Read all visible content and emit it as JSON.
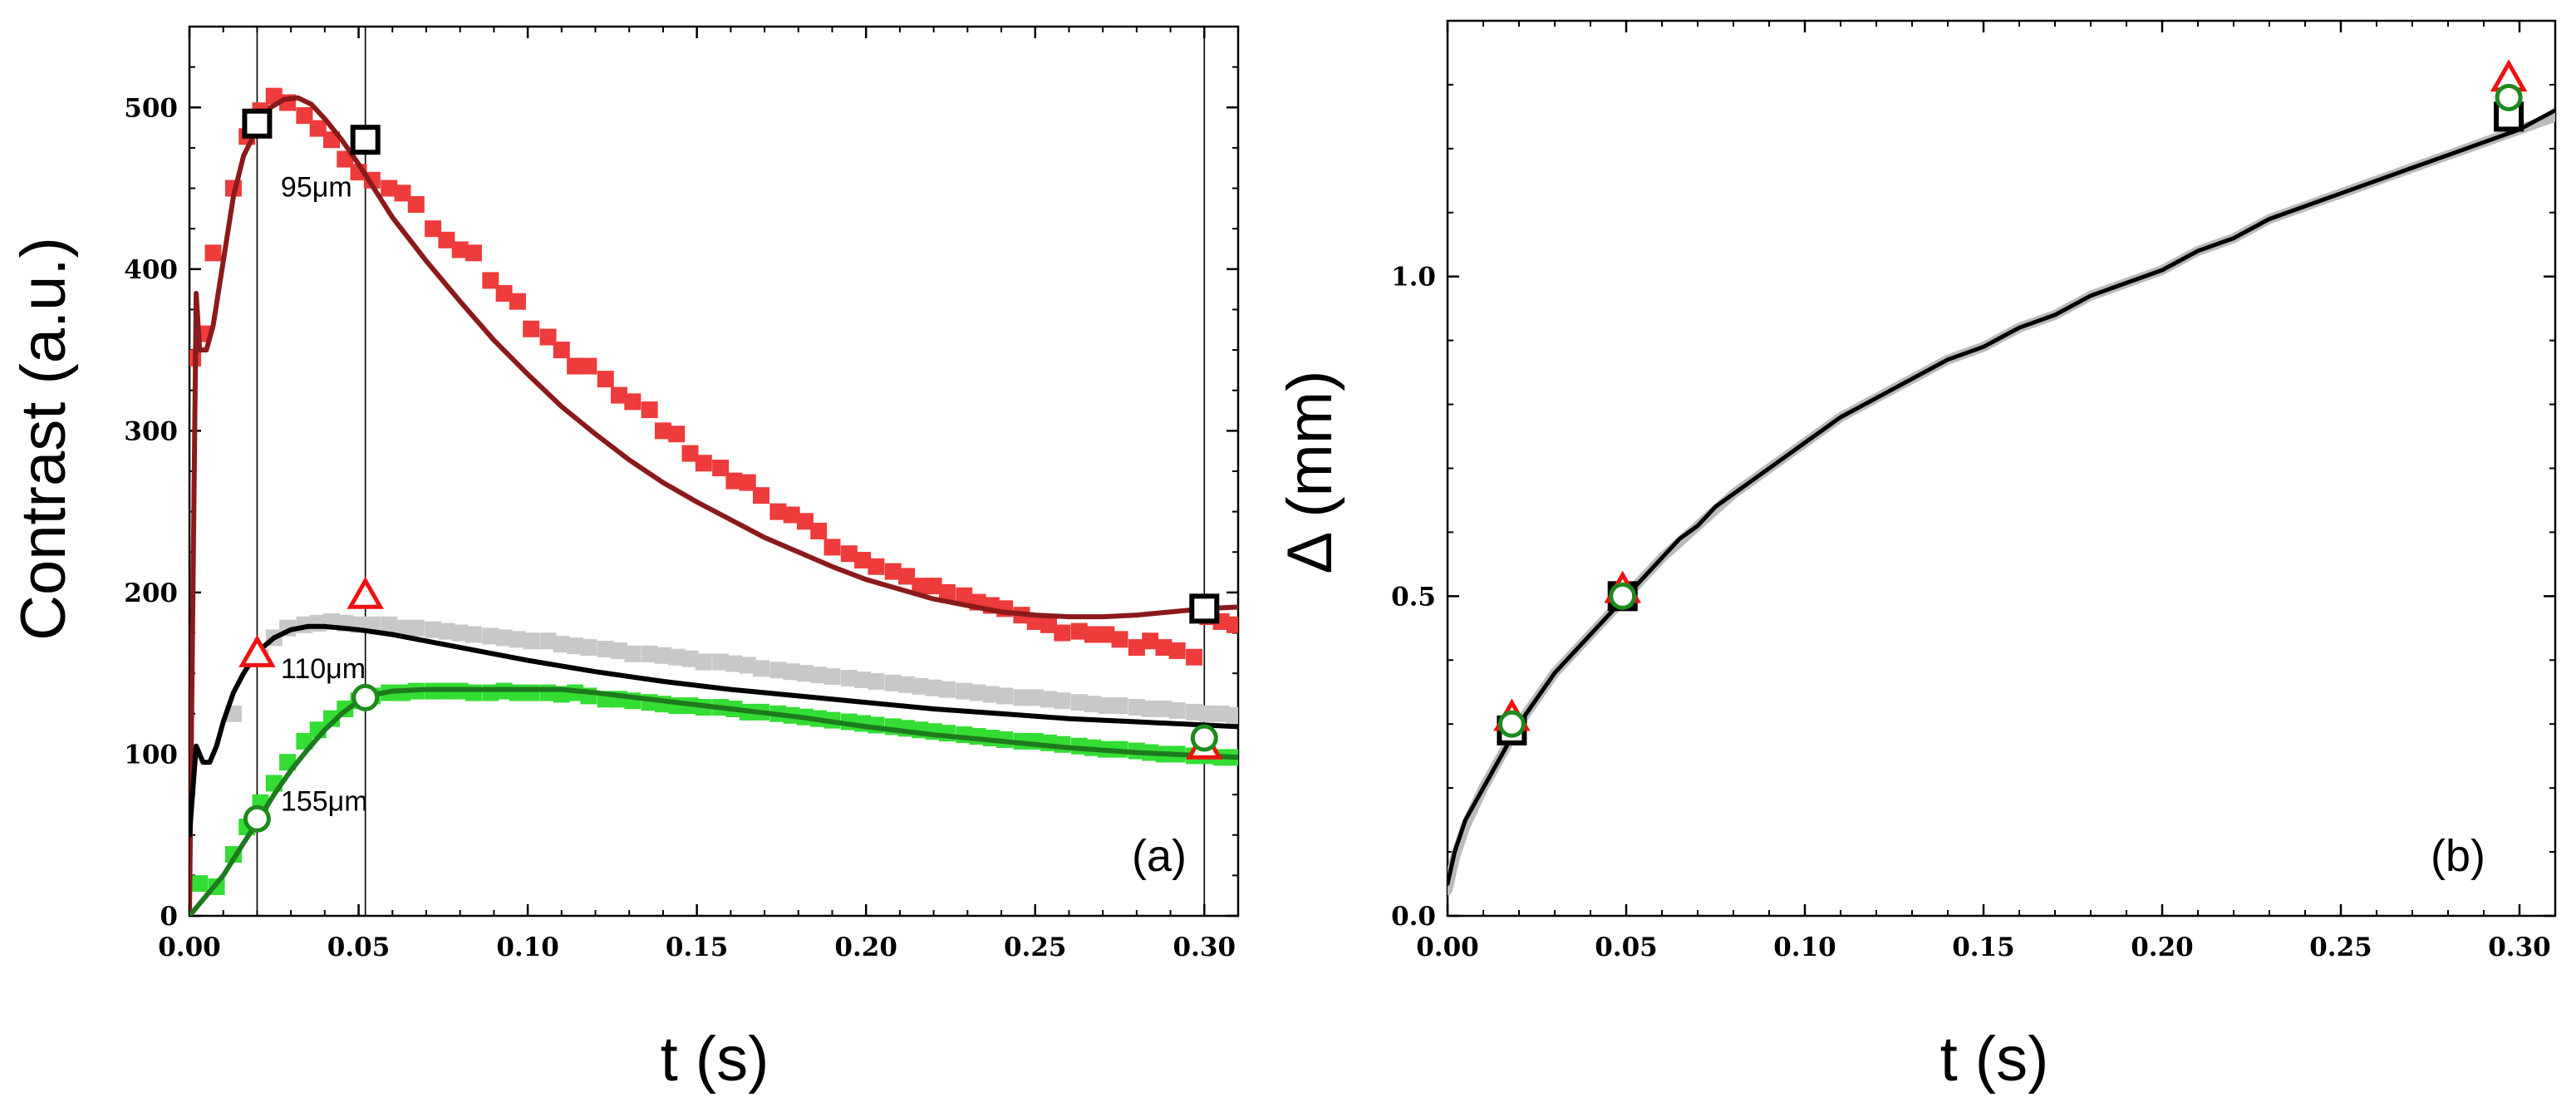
{
  "chart_data": [
    {
      "type": "scatter",
      "panel_label": "(a)",
      "xlabel": "t (s)",
      "ylabel": "Contrast (a.u.)",
      "xlim": [
        0,
        0.31
      ],
      "ylim": [
        0,
        550
      ],
      "x_ticks": [
        0.0,
        0.05,
        0.1,
        0.15,
        0.2,
        0.25,
        0.3
      ],
      "x_tick_labels": [
        "0.00",
        "0.05",
        "0.10",
        "0.15",
        "0.20",
        "0.25",
        "0.30"
      ],
      "y_ticks": [
        0,
        100,
        200,
        300,
        400,
        500
      ],
      "y_tick_labels": [
        "0",
        "100",
        "200",
        "300",
        "400",
        "500"
      ],
      "vlines": [
        0.02,
        0.052,
        0.3
      ],
      "annotations": [
        {
          "text": "95μm",
          "x": 0.027,
          "y": 445
        },
        {
          "text": "110μm",
          "x": 0.027,
          "y": 147
        },
        {
          "text": "155μm",
          "x": 0.027,
          "y": 65
        }
      ],
      "series": [
        {
          "name": "95μm data",
          "kind": "square-filled",
          "color": "#ee3b3b",
          "x": [
            0.001,
            0.004,
            0.007,
            0.013,
            0.017,
            0.021,
            0.025,
            0.029,
            0.034,
            0.038,
            0.042,
            0.046,
            0.05,
            0.054,
            0.059,
            0.063,
            0.067,
            0.072,
            0.076,
            0.08,
            0.084,
            0.089,
            0.093,
            0.097,
            0.101,
            0.106,
            0.11,
            0.114,
            0.118,
            0.123,
            0.127,
            0.131,
            0.136,
            0.14,
            0.144,
            0.148,
            0.152,
            0.157,
            0.161,
            0.165,
            0.169,
            0.174,
            0.178,
            0.182,
            0.186,
            0.19,
            0.195,
            0.199,
            0.203,
            0.208,
            0.212,
            0.216,
            0.22,
            0.224,
            0.229,
            0.233,
            0.237,
            0.241,
            0.246,
            0.25,
            0.254,
            0.258,
            0.263,
            0.267,
            0.271,
            0.275,
            0.28,
            0.284,
            0.288,
            0.292,
            0.297,
            0.301,
            0.305,
            0.309
          ],
          "y": [
            345,
            360,
            410,
            450,
            482,
            498,
            507,
            503,
            495,
            487,
            480,
            468,
            460,
            455,
            450,
            447,
            440,
            425,
            418,
            412,
            410,
            393,
            385,
            380,
            363,
            358,
            350,
            340,
            340,
            332,
            322,
            318,
            313,
            300,
            298,
            286,
            280,
            277,
            269,
            268,
            260,
            250,
            248,
            244,
            238,
            228,
            224,
            220,
            216,
            213,
            210,
            204,
            204,
            200,
            198,
            194,
            192,
            190,
            186,
            182,
            180,
            175,
            176,
            174,
            174,
            171,
            166,
            170,
            166,
            164,
            160,
            185,
            182,
            180
          ]
        },
        {
          "name": "110μm data",
          "kind": "square-filled",
          "color": "#c8c8c8",
          "x": [
            0.013,
            0.021,
            0.025,
            0.029,
            0.034,
            0.038,
            0.042,
            0.046,
            0.05,
            0.054,
            0.059,
            0.063,
            0.067,
            0.072,
            0.076,
            0.08,
            0.084,
            0.089,
            0.093,
            0.097,
            0.101,
            0.106,
            0.11,
            0.114,
            0.118,
            0.123,
            0.127,
            0.131,
            0.136,
            0.14,
            0.144,
            0.148,
            0.152,
            0.157,
            0.161,
            0.165,
            0.169,
            0.174,
            0.178,
            0.182,
            0.186,
            0.19,
            0.195,
            0.199,
            0.203,
            0.208,
            0.212,
            0.216,
            0.22,
            0.224,
            0.229,
            0.233,
            0.237,
            0.241,
            0.246,
            0.25,
            0.254,
            0.258,
            0.263,
            0.267,
            0.271,
            0.275,
            0.28,
            0.284,
            0.288,
            0.292,
            0.297,
            0.301,
            0.305,
            0.309
          ],
          "y": [
            125,
            160,
            172,
            178,
            180,
            181,
            182,
            181,
            180,
            180,
            180,
            178,
            178,
            177,
            176,
            175,
            174,
            173,
            172,
            171,
            170,
            170,
            168,
            167,
            166,
            165,
            164,
            162,
            162,
            161,
            160,
            159,
            157,
            157,
            156,
            155,
            153,
            152,
            151,
            150,
            149,
            148,
            147,
            146,
            145,
            144,
            143,
            142,
            141,
            140,
            139,
            138,
            137,
            136,
            135,
            135,
            134,
            133,
            132,
            131,
            130,
            130,
            129,
            128,
            128,
            127,
            126,
            125,
            125,
            124
          ]
        },
        {
          "name": "155μm data",
          "kind": "square-filled",
          "color": "#33dd33",
          "x": [
            0.003,
            0.008,
            0.013,
            0.017,
            0.021,
            0.025,
            0.029,
            0.034,
            0.038,
            0.042,
            0.046,
            0.05,
            0.054,
            0.059,
            0.063,
            0.067,
            0.072,
            0.076,
            0.08,
            0.084,
            0.089,
            0.093,
            0.097,
            0.101,
            0.106,
            0.11,
            0.114,
            0.118,
            0.123,
            0.127,
            0.131,
            0.136,
            0.14,
            0.144,
            0.148,
            0.152,
            0.157,
            0.161,
            0.165,
            0.169,
            0.174,
            0.178,
            0.182,
            0.186,
            0.19,
            0.195,
            0.199,
            0.203,
            0.208,
            0.212,
            0.216,
            0.22,
            0.224,
            0.229,
            0.233,
            0.237,
            0.241,
            0.246,
            0.25,
            0.254,
            0.258,
            0.263,
            0.267,
            0.271,
            0.275,
            0.28,
            0.284,
            0.288,
            0.292,
            0.297,
            0.301,
            0.305,
            0.309
          ],
          "y": [
            20,
            18,
            38,
            55,
            70,
            82,
            95,
            108,
            115,
            122,
            128,
            133,
            136,
            138,
            138,
            139,
            139,
            139,
            139,
            138,
            138,
            139,
            138,
            138,
            138,
            137,
            138,
            136,
            134,
            134,
            133,
            132,
            131,
            130,
            130,
            129,
            129,
            128,
            126,
            126,
            125,
            124,
            123,
            122,
            121,
            120,
            119,
            118,
            117,
            116,
            115,
            114,
            113,
            112,
            111,
            110,
            109,
            108,
            108,
            107,
            106,
            105,
            104,
            103,
            103,
            102,
            101,
            100,
            100,
            99,
            99,
            98,
            98
          ]
        },
        {
          "name": "95μm fit",
          "kind": "line",
          "color": "#8b1a1a",
          "x": [
            0.0,
            0.002,
            0.003,
            0.005,
            0.007,
            0.01,
            0.013,
            0.016,
            0.02,
            0.024,
            0.028,
            0.032,
            0.036,
            0.04,
            0.045,
            0.05,
            0.06,
            0.07,
            0.08,
            0.09,
            0.1,
            0.11,
            0.12,
            0.13,
            0.14,
            0.15,
            0.16,
            0.17,
            0.18,
            0.19,
            0.2,
            0.21,
            0.22,
            0.23,
            0.24,
            0.25,
            0.26,
            0.27,
            0.28,
            0.29,
            0.3,
            0.31
          ],
          "y": [
            0,
            385,
            350,
            350,
            365,
            405,
            445,
            470,
            487,
            500,
            505,
            506,
            502,
            493,
            480,
            465,
            432,
            405,
            380,
            356,
            335,
            315,
            298,
            282,
            268,
            256,
            245,
            234,
            225,
            216,
            208,
            202,
            196,
            192,
            188,
            186,
            185,
            185,
            186,
            188,
            190,
            191
          ]
        },
        {
          "name": "110μm fit",
          "kind": "line",
          "color": "#000000",
          "x": [
            0.0,
            0.002,
            0.004,
            0.006,
            0.008,
            0.01,
            0.013,
            0.016,
            0.02,
            0.025,
            0.03,
            0.035,
            0.04,
            0.045,
            0.05,
            0.06,
            0.07,
            0.08,
            0.09,
            0.1,
            0.12,
            0.14,
            0.16,
            0.18,
            0.2,
            0.22,
            0.24,
            0.26,
            0.28,
            0.3,
            0.31
          ],
          "y": [
            50,
            105,
            95,
            95,
            105,
            120,
            138,
            150,
            163,
            172,
            177,
            179,
            179,
            178,
            177,
            174,
            170,
            166,
            162,
            158,
            151,
            145,
            140,
            136,
            132,
            128,
            125,
            122,
            120,
            118,
            117
          ]
        },
        {
          "name": "155μm fit",
          "kind": "line",
          "color": "#1e7a1e",
          "x": [
            0.0,
            0.002,
            0.004,
            0.006,
            0.008,
            0.01,
            0.013,
            0.016,
            0.02,
            0.025,
            0.03,
            0.035,
            0.04,
            0.045,
            0.05,
            0.055,
            0.06,
            0.07,
            0.08,
            0.09,
            0.1,
            0.11,
            0.12,
            0.14,
            0.16,
            0.18,
            0.2,
            0.22,
            0.24,
            0.26,
            0.28,
            0.3,
            0.31
          ],
          "y": [
            0,
            5,
            10,
            15,
            20,
            25,
            35,
            45,
            58,
            75,
            90,
            103,
            115,
            125,
            133,
            137,
            139,
            140,
            140,
            140,
            140,
            140,
            138,
            133,
            128,
            123,
            117,
            112,
            108,
            104,
            101,
            99,
            98
          ]
        },
        {
          "name": "squares",
          "kind": "square-open",
          "color": "#000000",
          "x": [
            0.02,
            0.052,
            0.3
          ],
          "y": [
            490,
            480,
            190
          ]
        },
        {
          "name": "triangles",
          "kind": "triangle-open",
          "color": "#ee1111",
          "x": [
            0.02,
            0.052,
            0.3
          ],
          "y": [
            162,
            198,
            105
          ]
        },
        {
          "name": "circles",
          "kind": "circle-open",
          "color": "#1e8a1e",
          "x": [
            0.02,
            0.052,
            0.3
          ],
          "y": [
            60,
            135,
            110
          ]
        }
      ]
    },
    {
      "type": "line",
      "panel_label": "(b)",
      "xlabel": "t (s)",
      "ylabel": "Δ (mm)",
      "xlim": [
        0,
        0.31
      ],
      "ylim": [
        0,
        1.4
      ],
      "x_ticks": [
        0.0,
        0.05,
        0.1,
        0.15,
        0.2,
        0.25,
        0.3
      ],
      "x_tick_labels": [
        "0.00",
        "0.05",
        "0.10",
        "0.15",
        "0.20",
        "0.25",
        "0.30"
      ],
      "y_ticks": [
        0.0,
        0.5,
        1.0
      ],
      "y_tick_labels": [
        "0.0",
        "0.5",
        "1.0"
      ],
      "series": [
        {
          "name": "gray trace",
          "kind": "line",
          "color": "#bbbbbb",
          "x": [
            0.0,
            0.002,
            0.005,
            0.01,
            0.015,
            0.02,
            0.03,
            0.04,
            0.05,
            0.06,
            0.07,
            0.08,
            0.09,
            0.1,
            0.11,
            0.12,
            0.13,
            0.14,
            0.15,
            0.16,
            0.17,
            0.18,
            0.19,
            0.2,
            0.21,
            0.22,
            0.23,
            0.24,
            0.25,
            0.26,
            0.27,
            0.28,
            0.29,
            0.3,
            0.31
          ],
          "y": [
            0.04,
            0.09,
            0.14,
            0.2,
            0.25,
            0.3,
            0.38,
            0.44,
            0.5,
            0.56,
            0.61,
            0.66,
            0.7,
            0.74,
            0.78,
            0.81,
            0.84,
            0.87,
            0.89,
            0.92,
            0.94,
            0.97,
            0.99,
            1.01,
            1.04,
            1.06,
            1.09,
            1.11,
            1.13,
            1.15,
            1.17,
            1.19,
            1.21,
            1.23,
            1.25
          ]
        },
        {
          "name": "black trace",
          "kind": "line",
          "color": "#000000",
          "x": [
            0.0,
            0.002,
            0.005,
            0.01,
            0.015,
            0.02,
            0.025,
            0.03,
            0.035,
            0.04,
            0.045,
            0.05,
            0.055,
            0.06,
            0.065,
            0.07,
            0.075,
            0.08,
            0.085,
            0.09,
            0.095,
            0.1,
            0.11,
            0.12,
            0.13,
            0.14,
            0.15,
            0.16,
            0.17,
            0.18,
            0.19,
            0.2,
            0.21,
            0.22,
            0.23,
            0.24,
            0.25,
            0.26,
            0.27,
            0.28,
            0.29,
            0.3,
            0.31
          ],
          "y": [
            0.05,
            0.1,
            0.15,
            0.2,
            0.25,
            0.3,
            0.34,
            0.38,
            0.41,
            0.44,
            0.47,
            0.5,
            0.53,
            0.56,
            0.59,
            0.61,
            0.64,
            0.66,
            0.68,
            0.7,
            0.72,
            0.74,
            0.78,
            0.81,
            0.84,
            0.87,
            0.89,
            0.92,
            0.94,
            0.97,
            0.99,
            1.01,
            1.04,
            1.06,
            1.09,
            1.11,
            1.13,
            1.15,
            1.17,
            1.19,
            1.21,
            1.23,
            1.26
          ]
        },
        {
          "name": "squares",
          "kind": "square-open",
          "color": "#000000",
          "x": [
            0.018,
            0.049,
            0.297
          ],
          "y": [
            0.29,
            0.5,
            1.25
          ]
        },
        {
          "name": "triangles",
          "kind": "triangle-open",
          "color": "#ee1111",
          "x": [
            0.018,
            0.049,
            0.297
          ],
          "y": [
            0.31,
            0.51,
            1.31
          ]
        },
        {
          "name": "circles",
          "kind": "circle-open",
          "color": "#1e8a1e",
          "x": [
            0.018,
            0.049,
            0.297
          ],
          "y": [
            0.3,
            0.5,
            1.28
          ]
        }
      ]
    }
  ]
}
